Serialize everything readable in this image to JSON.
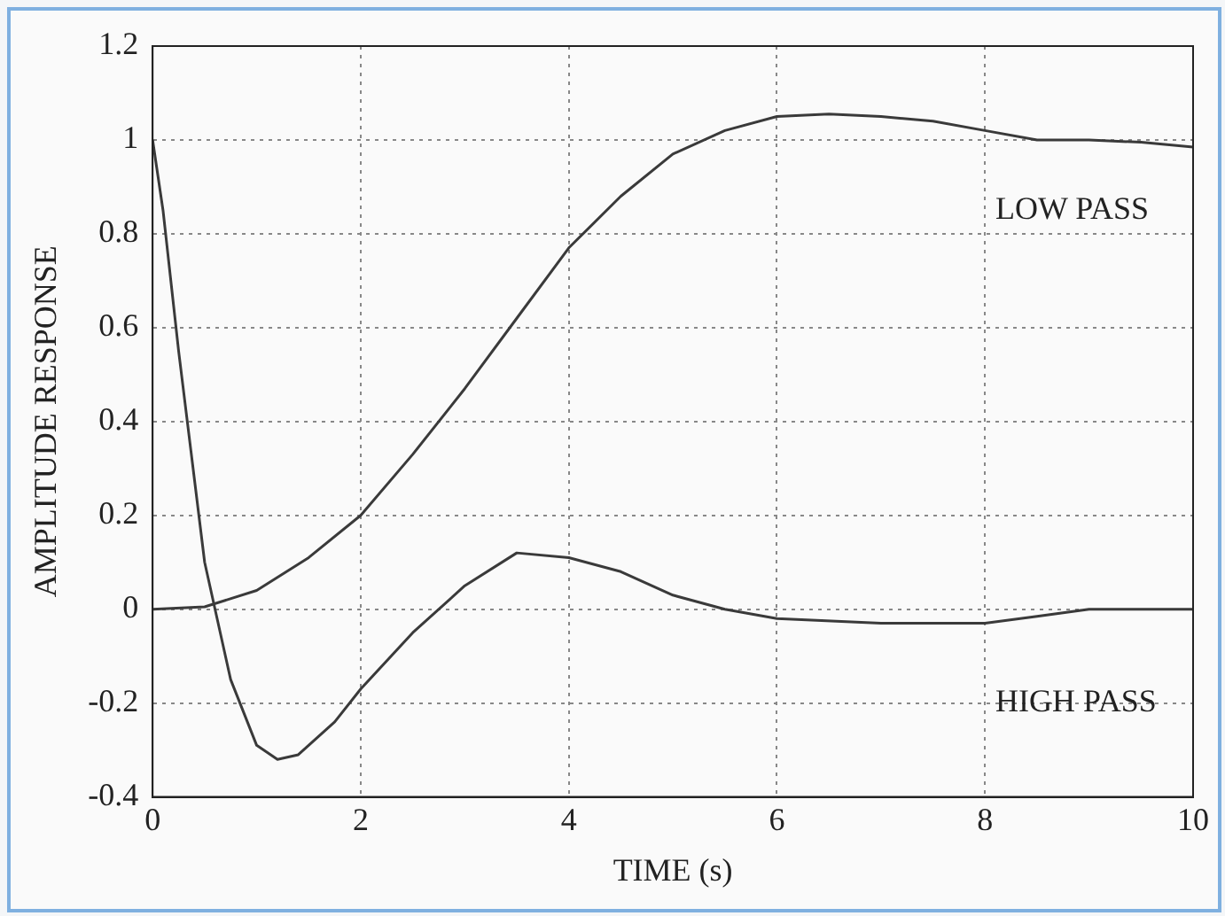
{
  "chart_data": {
    "type": "line",
    "xlabel": "TIME (s)",
    "ylabel": "AMPLITUDE RESPONSE",
    "xlim": [
      0,
      10
    ],
    "xticks": [
      0,
      2,
      4,
      6,
      8,
      10
    ],
    "ylim": [
      -0.4,
      1.2
    ],
    "yticks": [
      -0.4,
      -0.2,
      0,
      0.2,
      0.4,
      0.6,
      0.8,
      1,
      1.2
    ],
    "grid": true,
    "line_style": "solid",
    "marker": "none",
    "series": [
      {
        "name": "LOW PASS",
        "color": "#3a3a3a",
        "x": [
          0,
          0.5,
          1,
          1.5,
          2,
          2.5,
          3,
          3.5,
          4,
          4.5,
          5,
          5.5,
          6,
          6.5,
          7,
          7.5,
          8,
          8.5,
          9,
          9.5,
          10
        ],
        "values": [
          0,
          0.005,
          0.04,
          0.11,
          0.2,
          0.33,
          0.47,
          0.62,
          0.77,
          0.88,
          0.97,
          1.02,
          1.05,
          1.055,
          1.05,
          1.04,
          1.02,
          1.0,
          1.0,
          0.995,
          0.985
        ]
      },
      {
        "name": "HIGH PASS",
        "color": "#3a3a3a",
        "x": [
          0,
          0.1,
          0.25,
          0.5,
          0.75,
          1,
          1.2,
          1.4,
          1.75,
          2,
          2.5,
          3,
          3.5,
          4,
          4.5,
          5,
          5.5,
          6,
          7,
          8,
          8.5,
          9,
          10
        ],
        "values": [
          1,
          0.85,
          0.55,
          0.1,
          -0.15,
          -0.29,
          -0.32,
          -0.31,
          -0.24,
          -0.17,
          -0.05,
          0.05,
          0.12,
          0.11,
          0.08,
          0.03,
          0,
          -0.02,
          -0.03,
          -0.03,
          -0.015,
          0,
          0
        ]
      }
    ]
  }
}
